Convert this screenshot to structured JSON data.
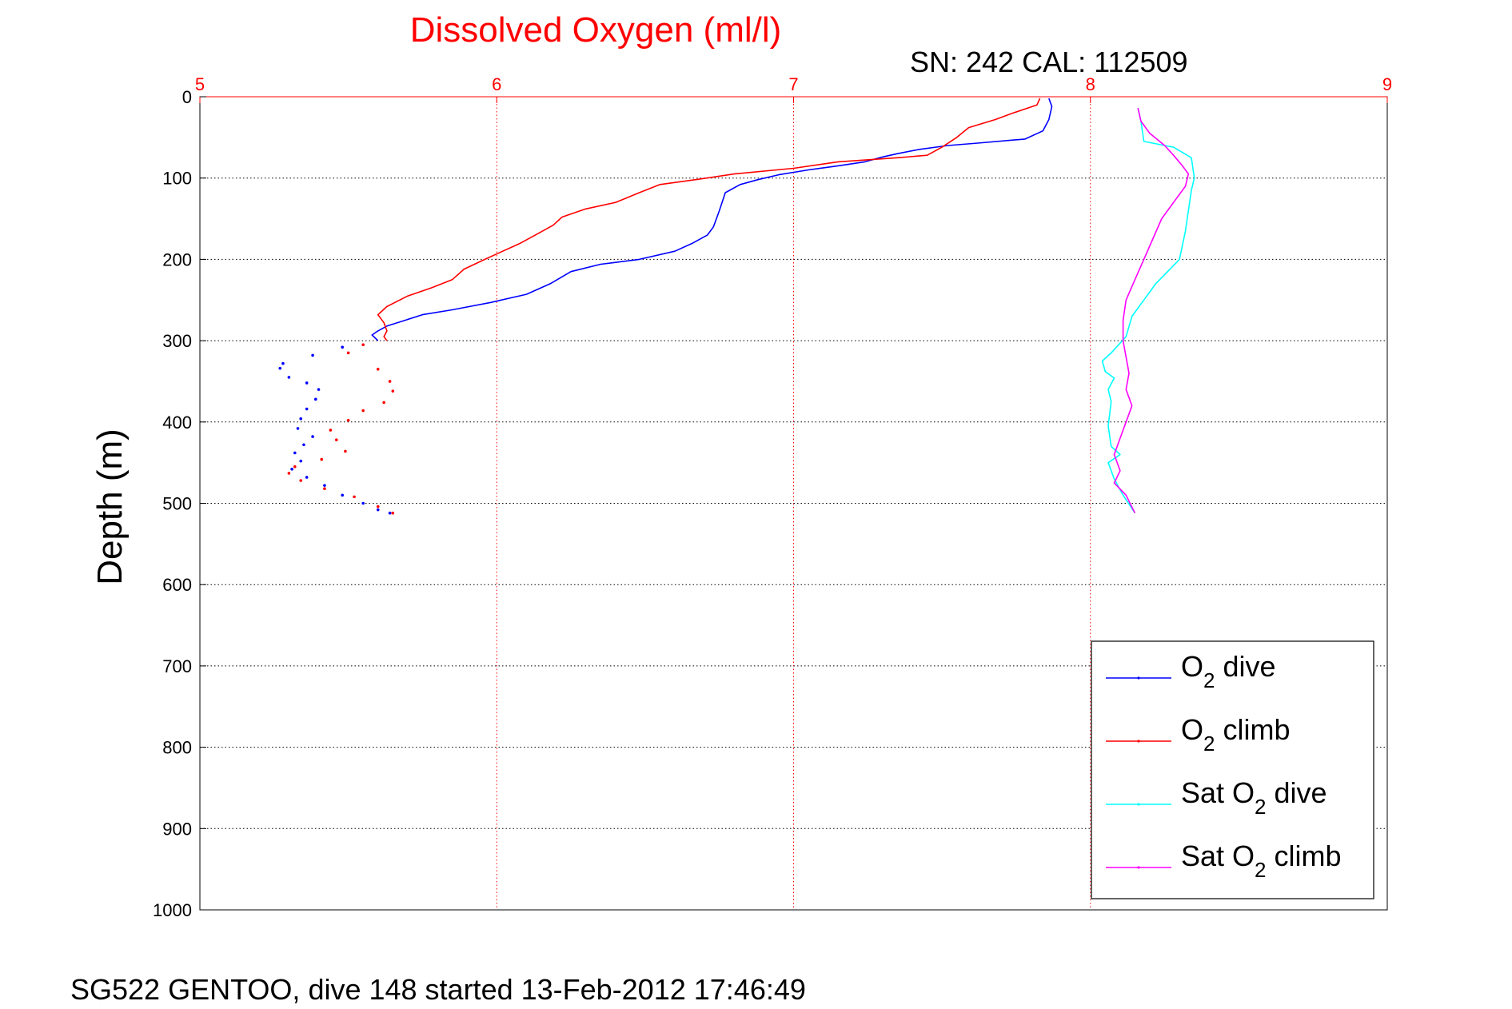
{
  "chart_data": {
    "type": "line",
    "title": "Dissolved Oxygen (ml/l)",
    "subtitle": "SN: 242  CAL: 112509",
    "footer": "SG522 GENTOO, dive 148 started 13-Feb-2012 17:46:49",
    "xlabel": "",
    "ylabel": "Depth (m)",
    "xlim": [
      5,
      9
    ],
    "ylim": [
      0,
      1000
    ],
    "y_reversed": true,
    "x_axis_position": "top",
    "x_ticks": [
      5,
      6,
      7,
      8,
      9
    ],
    "y_ticks": [
      0,
      100,
      200,
      300,
      400,
      500,
      600,
      700,
      800,
      900,
      1000
    ],
    "grid": true,
    "legend_position": "bottom-right",
    "colors": {
      "title": "#ff0000",
      "x_tick_labels": "#ff0000",
      "vgrid": "#ff0000",
      "hgrid": "#000000"
    },
    "series": [
      {
        "name": "dive",
        "legend_parts": [
          "O",
          "2",
          " dive"
        ],
        "color": "#0000ff",
        "style": "line",
        "points": [
          [
            7.86,
            2
          ],
          [
            7.87,
            12
          ],
          [
            7.86,
            28
          ],
          [
            7.84,
            42
          ],
          [
            7.78,
            52
          ],
          [
            7.62,
            57
          ],
          [
            7.52,
            60
          ],
          [
            7.42,
            65
          ],
          [
            7.35,
            70
          ],
          [
            7.3,
            74
          ],
          [
            7.24,
            80
          ],
          [
            7.15,
            85
          ],
          [
            7.05,
            90
          ],
          [
            6.95,
            96
          ],
          [
            6.88,
            102
          ],
          [
            6.82,
            108
          ],
          [
            6.77,
            118
          ],
          [
            6.75,
            140
          ],
          [
            6.73,
            160
          ],
          [
            6.71,
            170
          ],
          [
            6.66,
            180
          ],
          [
            6.6,
            190
          ],
          [
            6.48,
            200
          ],
          [
            6.35,
            206
          ],
          [
            6.25,
            215
          ],
          [
            6.18,
            230
          ],
          [
            6.1,
            243
          ],
          [
            5.98,
            253
          ],
          [
            5.85,
            262
          ],
          [
            5.75,
            268
          ],
          [
            5.69,
            275
          ],
          [
            5.63,
            282
          ],
          [
            5.6,
            288
          ],
          [
            5.58,
            293
          ],
          [
            5.6,
            300
          ]
        ]
      },
      {
        "name": "dive-scatter",
        "color": "#0000ff",
        "style": "dots",
        "points": [
          [
            5.48,
            308
          ],
          [
            5.38,
            318
          ],
          [
            5.28,
            328
          ],
          [
            5.27,
            334
          ],
          [
            5.3,
            345
          ],
          [
            5.36,
            352
          ],
          [
            5.4,
            360
          ],
          [
            5.39,
            372
          ],
          [
            5.36,
            384
          ],
          [
            5.34,
            396
          ],
          [
            5.33,
            408
          ],
          [
            5.38,
            418
          ],
          [
            5.35,
            428
          ],
          [
            5.32,
            438
          ],
          [
            5.34,
            448
          ],
          [
            5.31,
            458
          ],
          [
            5.36,
            468
          ],
          [
            5.42,
            478
          ],
          [
            5.48,
            490
          ],
          [
            5.55,
            500
          ],
          [
            5.6,
            508
          ],
          [
            5.64,
            512
          ]
        ]
      },
      {
        "name": "climb",
        "legend_parts": [
          "O",
          "2",
          " climb"
        ],
        "color": "#ff0000",
        "style": "line",
        "points": [
          [
            7.83,
            2
          ],
          [
            7.82,
            10
          ],
          [
            7.74,
            20
          ],
          [
            7.68,
            28
          ],
          [
            7.59,
            38
          ],
          [
            7.55,
            50
          ],
          [
            7.5,
            62
          ],
          [
            7.45,
            72
          ],
          [
            7.35,
            75
          ],
          [
            7.15,
            80
          ],
          [
            7.0,
            88
          ],
          [
            6.8,
            95
          ],
          [
            6.67,
            102
          ],
          [
            6.55,
            108
          ],
          [
            6.48,
            118
          ],
          [
            6.4,
            130
          ],
          [
            6.3,
            138
          ],
          [
            6.22,
            148
          ],
          [
            6.19,
            158
          ],
          [
            6.14,
            168
          ],
          [
            6.08,
            180
          ],
          [
            6.02,
            190
          ],
          [
            5.96,
            200
          ],
          [
            5.89,
            212
          ],
          [
            5.85,
            225
          ],
          [
            5.78,
            235
          ],
          [
            5.7,
            245
          ],
          [
            5.63,
            258
          ],
          [
            5.6,
            268
          ],
          [
            5.62,
            278
          ],
          [
            5.63,
            288
          ],
          [
            5.62,
            295
          ],
          [
            5.63,
            300
          ]
        ]
      },
      {
        "name": "climb-scatter",
        "color": "#ff0000",
        "style": "dots",
        "points": [
          [
            5.55,
            305
          ],
          [
            5.5,
            315
          ],
          [
            5.6,
            335
          ],
          [
            5.64,
            350
          ],
          [
            5.65,
            362
          ],
          [
            5.62,
            376
          ],
          [
            5.55,
            386
          ],
          [
            5.5,
            398
          ],
          [
            5.44,
            410
          ],
          [
            5.46,
            422
          ],
          [
            5.49,
            436
          ],
          [
            5.41,
            446
          ],
          [
            5.32,
            455
          ],
          [
            5.3,
            463
          ],
          [
            5.34,
            472
          ],
          [
            5.42,
            482
          ],
          [
            5.52,
            492
          ],
          [
            5.6,
            504
          ],
          [
            5.65,
            512
          ]
        ]
      },
      {
        "name": "sat-dive",
        "legend_parts": [
          "Sat O",
          "2",
          " dive"
        ],
        "color": "#00ffff",
        "style": "line",
        "points": [
          [
            8.16,
            14
          ],
          [
            8.17,
            30
          ],
          [
            8.18,
            55
          ],
          [
            8.28,
            62
          ],
          [
            8.34,
            75
          ],
          [
            8.35,
            100
          ],
          [
            8.34,
            115
          ],
          [
            8.33,
            140
          ],
          [
            8.32,
            165
          ],
          [
            8.3,
            200
          ],
          [
            8.26,
            215
          ],
          [
            8.22,
            230
          ],
          [
            8.18,
            250
          ],
          [
            8.14,
            270
          ],
          [
            8.12,
            295
          ],
          [
            8.07,
            315
          ],
          [
            8.04,
            325
          ],
          [
            8.05,
            338
          ],
          [
            8.08,
            346
          ],
          [
            8.06,
            360
          ],
          [
            8.07,
            375
          ],
          [
            8.06,
            405
          ],
          [
            8.07,
            430
          ],
          [
            8.1,
            440
          ],
          [
            8.06,
            450
          ],
          [
            8.08,
            470
          ],
          [
            8.11,
            490
          ],
          [
            8.15,
            512
          ]
        ]
      },
      {
        "name": "sat-climb",
        "legend_parts": [
          "Sat O",
          "2",
          " climb"
        ],
        "color": "#ff00ff",
        "style": "line",
        "points": [
          [
            8.16,
            14
          ],
          [
            8.17,
            30
          ],
          [
            8.2,
            45
          ],
          [
            8.25,
            60
          ],
          [
            8.28,
            72
          ],
          [
            8.31,
            85
          ],
          [
            8.33,
            95
          ],
          [
            8.32,
            110
          ],
          [
            8.28,
            130
          ],
          [
            8.24,
            150
          ],
          [
            8.21,
            175
          ],
          [
            8.18,
            200
          ],
          [
            8.15,
            225
          ],
          [
            8.12,
            250
          ],
          [
            8.11,
            275
          ],
          [
            8.11,
            300
          ],
          [
            8.12,
            320
          ],
          [
            8.13,
            340
          ],
          [
            8.12,
            360
          ],
          [
            8.14,
            380
          ],
          [
            8.12,
            400
          ],
          [
            8.1,
            420
          ],
          [
            8.08,
            440
          ],
          [
            8.1,
            460
          ],
          [
            8.08,
            475
          ],
          [
            8.12,
            490
          ],
          [
            8.15,
            512
          ]
        ]
      }
    ]
  }
}
